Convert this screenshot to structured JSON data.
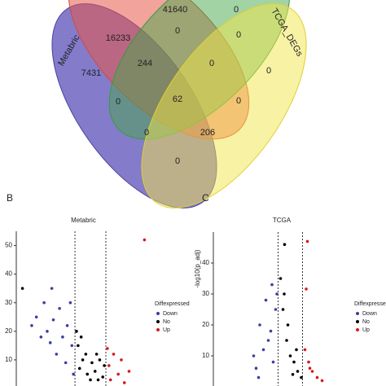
{
  "chart_data": [
    {
      "type": "venn",
      "sets": [
        "Metabric",
        "TCGA_DEGs"
      ],
      "regions": [
        41640,
        0,
        16233,
        0,
        0,
        7431,
        244,
        0,
        0,
        62,
        0,
        0,
        206,
        0,
        0
      ]
    },
    {
      "type": "scatter",
      "panel": "B",
      "title": "Metabric",
      "xlim": [
        -4.8,
        3.9
      ],
      "ylim": [
        0,
        55
      ],
      "yticks": [
        10,
        20,
        30,
        40,
        50
      ],
      "vlines": [
        -1,
        1
      ],
      "legend_title": "Diffexpressed",
      "series": [
        {
          "name": "Down",
          "color": "#3a3fa0",
          "x": [
            -3.5,
            -3.0,
            -2.5,
            -2.8,
            -2.0,
            -1.5,
            -1.2,
            -2.2,
            -1.8,
            -3.8,
            -1.3,
            -2.6,
            -1.6,
            -2.4,
            -3.2,
            -1.1
          ],
          "values": [
            25,
            30,
            35,
            20,
            28,
            22,
            15,
            12,
            18,
            22,
            30,
            16,
            9,
            24,
            18,
            5
          ]
        },
        {
          "name": "No",
          "color": "#000000",
          "x": [
            -0.8,
            -0.5,
            -0.2,
            0,
            0.3,
            0.6,
            0.9,
            -0.6,
            0.5,
            -0.3,
            -4.4,
            -0.9,
            0.8,
            0.1,
            -0.7,
            0.4
          ],
          "values": [
            15,
            10,
            5,
            3,
            6,
            10,
            8,
            18,
            3,
            12,
            35,
            20,
            4,
            9,
            7,
            12
          ]
        },
        {
          "name": "Up",
          "color": "#d7191c",
          "x": [
            1.2,
            1.5,
            1.8,
            2.0,
            1.3,
            2.5,
            3.5,
            1.1,
            2.2
          ],
          "values": [
            8,
            12,
            5,
            10,
            3,
            6,
            52,
            14,
            2
          ]
        }
      ]
    },
    {
      "type": "scatter",
      "panel": "C",
      "title": "TCGA",
      "ylabel": "-log10(p_adj)",
      "xlim": [
        -6.3,
        4.9
      ],
      "ylim": [
        0,
        50
      ],
      "yticks": [
        10,
        20,
        30,
        40
      ],
      "vlines": [
        -1,
        1
      ],
      "legend_title": "Diffexpressed",
      "series": [
        {
          "name": "Down",
          "color": "#3a3fa0",
          "x": [
            -3.0,
            -2.5,
            -2.0,
            -1.5,
            -1.2,
            -2.8,
            -1.8,
            -1.4,
            -2.2,
            -1.1,
            -1.6,
            -2.6
          ],
          "values": [
            10,
            20,
            28,
            33,
            25,
            6,
            15,
            8,
            12,
            30,
            18,
            3
          ]
        },
        {
          "name": "No",
          "color": "#000000",
          "x": [
            -0.47,
            -0.8,
            -0.5,
            -0.2,
            0,
            0.3,
            0.6,
            0.9,
            -0.6,
            0.5,
            -0.3,
            0.2
          ],
          "values": [
            46,
            35,
            30,
            20,
            10,
            8,
            5,
            3,
            25,
            12,
            15,
            4
          ]
        },
        {
          "name": "Up",
          "color": "#d7191c",
          "x": [
            1.4,
            1.3,
            1.5,
            1.8,
            2.2,
            1.2,
            2.6,
            1.6
          ],
          "values": [
            47,
            31.6,
            8,
            5,
            3,
            12,
            2,
            6
          ]
        }
      ]
    }
  ]
}
